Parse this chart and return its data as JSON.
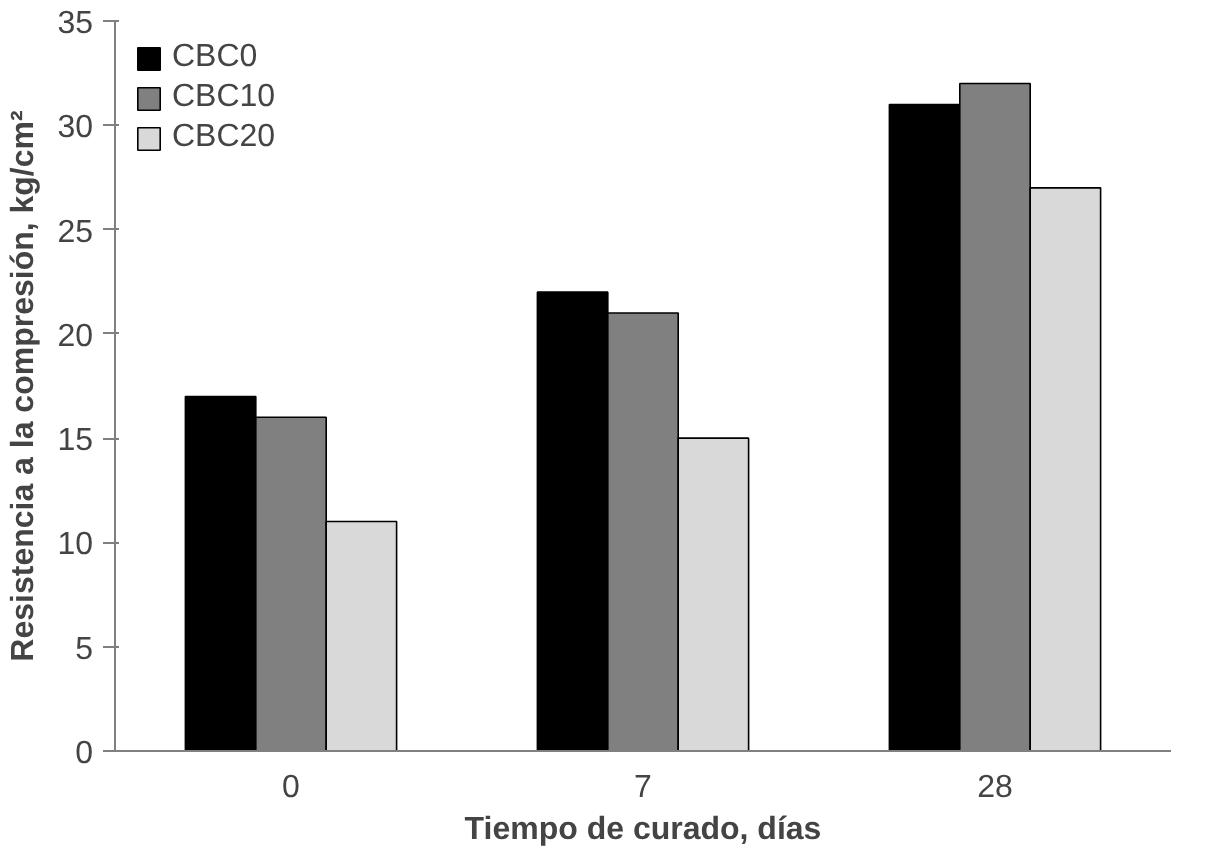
{
  "chart_data": {
    "type": "bar",
    "xlabel": "Tiempo de curado, días",
    "ylabel": "Resistencia a la compresión, kg/cm²",
    "categories": [
      "0",
      "7",
      "28"
    ],
    "series": [
      {
        "name": "CBC0",
        "color": "#000000",
        "values": [
          17,
          22,
          31
        ]
      },
      {
        "name": "CBC10",
        "color": "#808080",
        "values": [
          16,
          21,
          32
        ]
      },
      {
        "name": "CBC20",
        "color": "#d9d9d9",
        "values": [
          11,
          15,
          27
        ]
      }
    ],
    "ylim": [
      0,
      35
    ],
    "yticks": [
      0,
      5,
      10,
      15,
      20,
      25,
      30,
      35
    ],
    "grid": false,
    "legend": "top left"
  }
}
